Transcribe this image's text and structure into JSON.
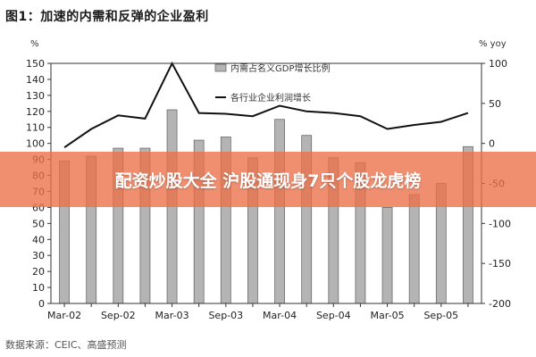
{
  "title": "图1：加速的内需和反弹的企业盈利",
  "left_unit": "%",
  "right_unit": "% yoy",
  "source": "数据来源：CEIC、高盛预测",
  "banner": "配资炒股大全 沪股通现身7只个股龙虎榜",
  "colors": {
    "bar": "#b4b4b4",
    "bar_edge": "#6a6a6a",
    "line": "#111111",
    "banner": "#ec7048"
  },
  "chart_data": {
    "type": "bar",
    "x": [
      "Mar-02",
      "Jun-02",
      "Sep-02",
      "Dec-02",
      "Mar-03",
      "Jun-03",
      "Sep-03",
      "Dec-03",
      "Mar-04",
      "Jun-04",
      "Sep-04",
      "Dec-04",
      "Mar-05",
      "Jun-05",
      "Sep-05",
      "Dec-05"
    ],
    "x_tick_labels": [
      "Mar-02",
      "Sep-02",
      "Mar-03",
      "Sep-03",
      "Mar-04",
      "Sep-04",
      "Mar-05",
      "Sep-05"
    ],
    "series": [
      {
        "name": "内需占名义GDP增长比例",
        "type": "bar",
        "axis": "left",
        "values": [
          89,
          92,
          97,
          97,
          121,
          102,
          104,
          91,
          115,
          105,
          91,
          88,
          60,
          68,
          75,
          98
        ]
      },
      {
        "name": "各行业企业利润增长",
        "type": "line",
        "axis": "right",
        "values": [
          -5,
          18,
          35,
          31,
          100,
          38,
          37,
          34,
          47,
          40,
          38,
          34,
          18,
          23,
          27,
          38
        ]
      }
    ],
    "left_axis": {
      "ylim": [
        0,
        150
      ],
      "ticks": [
        0,
        10,
        20,
        30,
        40,
        50,
        60,
        70,
        80,
        90,
        100,
        110,
        120,
        130,
        140,
        150
      ]
    },
    "right_axis": {
      "ylim": [
        -200,
        100
      ],
      "ticks": [
        -200,
        -150,
        -100,
        -50,
        0,
        50,
        100
      ]
    },
    "legend_position": "top-center"
  }
}
